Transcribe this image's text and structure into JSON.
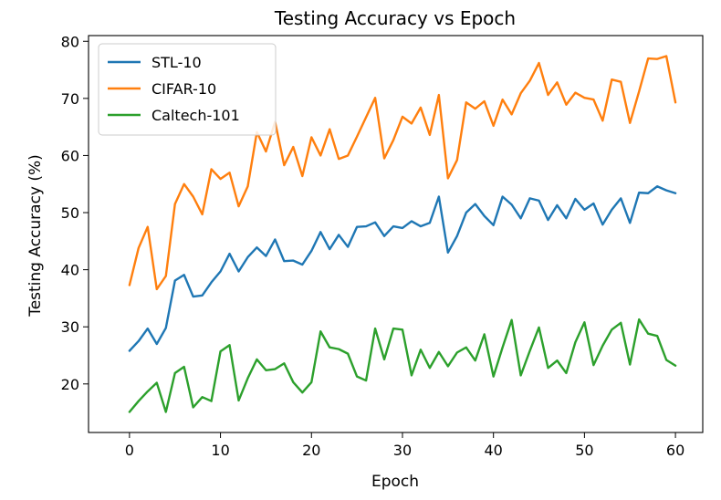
{
  "chart_data": {
    "type": "line",
    "title": "Testing Accuracy vs Epoch",
    "xlabel": "Epoch",
    "ylabel": "Testing Accuracy (%)",
    "xlim": [
      -4.5,
      63.0
    ],
    "ylim": [
      11.5,
      81.0
    ],
    "xticks": [
      0,
      10,
      20,
      30,
      40,
      50,
      60
    ],
    "yticks": [
      20,
      30,
      40,
      50,
      60,
      70,
      80
    ],
    "grid": false,
    "legend_position": "top-left",
    "x": [
      0,
      1,
      2,
      3,
      4,
      5,
      6,
      7,
      8,
      9,
      10,
      11,
      12,
      13,
      14,
      15,
      16,
      17,
      18,
      19,
      20,
      21,
      22,
      23,
      24,
      25,
      26,
      27,
      28,
      29,
      30,
      31,
      32,
      33,
      34,
      35,
      36,
      37,
      38,
      39,
      40,
      41,
      42,
      43,
      44,
      45,
      46,
      47,
      48,
      49,
      50,
      51,
      52,
      53,
      54,
      55,
      56,
      57,
      58,
      59,
      60
    ],
    "series": [
      {
        "name": "STL-10",
        "color": "#1f77b4",
        "values": [
          25.8,
          27.5,
          29.7,
          27.0,
          29.8,
          38.1,
          39.1,
          35.3,
          35.5,
          37.8,
          39.7,
          42.8,
          39.7,
          42.2,
          43.9,
          42.4,
          45.3,
          41.5,
          41.6,
          40.9,
          43.3,
          46.6,
          43.6,
          46.1,
          44.0,
          47.5,
          47.6,
          48.3,
          45.9,
          47.6,
          47.3,
          48.5,
          47.6,
          48.2,
          52.8,
          43.0,
          45.9,
          50.0,
          51.5,
          49.4,
          47.8,
          52.8,
          51.4,
          49.0,
          52.5,
          52.1,
          48.7,
          51.3,
          49.0,
          52.4,
          50.5,
          51.6,
          47.9,
          50.5,
          52.5,
          48.2,
          53.5,
          53.4,
          54.6,
          53.9,
          53.4
        ]
      },
      {
        "name": "CIFAR-10",
        "color": "#ff7f0e",
        "values": [
          37.3,
          43.8,
          47.5,
          36.6,
          38.9,
          51.5,
          55.0,
          52.8,
          49.7,
          57.6,
          55.9,
          57.0,
          51.1,
          54.6,
          64.1,
          60.7,
          65.9,
          58.3,
          61.5,
          56.4,
          63.2,
          60.0,
          64.6,
          59.4,
          60.0,
          63.3,
          66.7,
          70.1,
          59.5,
          62.7,
          66.8,
          65.6,
          68.4,
          63.6,
          70.6,
          56.0,
          59.2,
          69.3,
          68.2,
          69.5,
          65.2,
          69.8,
          67.2,
          70.9,
          73.1,
          76.2,
          70.6,
          72.8,
          68.9,
          71.0,
          70.1,
          69.8,
          66.1,
          73.3,
          72.9,
          65.7,
          71.2,
          77.0,
          76.9,
          77.4,
          69.3
        ]
      },
      {
        "name": "Caltech-101",
        "color": "#2ca02c",
        "values": [
          15.1,
          17.0,
          18.7,
          20.2,
          15.1,
          21.9,
          23.0,
          15.9,
          17.7,
          17.0,
          25.7,
          26.8,
          17.1,
          21.0,
          24.3,
          22.4,
          22.6,
          23.6,
          20.3,
          18.5,
          20.3,
          29.2,
          26.4,
          26.1,
          25.3,
          21.3,
          20.6,
          29.7,
          24.3,
          29.7,
          29.5,
          21.5,
          26.0,
          22.8,
          25.6,
          23.1,
          25.5,
          26.4,
          24.1,
          28.7,
          21.3,
          26.4,
          31.2,
          21.5,
          25.8,
          29.9,
          22.8,
          24.1,
          21.9,
          27.3,
          30.8,
          23.3,
          26.7,
          29.5,
          30.7,
          23.4,
          31.3,
          28.8,
          28.4,
          24.2,
          23.2
        ]
      }
    ]
  }
}
